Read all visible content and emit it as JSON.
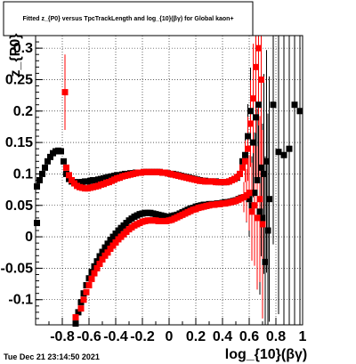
{
  "page": {
    "title": "Fitted  z_{P0}  versus TpcTrackLength and log_{10}(βγ) for Global kaon+",
    "timestamp": "Tue Dec 21 23:14:50 2021"
  },
  "chart_data": {
    "type": "scatter",
    "title": "Fitted  z_{P0}  versus TpcTrackLength and log_{10}(βγ) for Global kaon+",
    "xlabel": "log_{10}(βγ)",
    "ylabel": "z_{P0}",
    "xlim": [
      -1.0,
      1.0
    ],
    "ylim": [
      -0.14,
      0.32
    ],
    "xticks": [
      -0.8,
      -0.6,
      -0.4,
      -0.2,
      0,
      0.2,
      0.4,
      0.6,
      0.8,
      1
    ],
    "xtick_labels": [
      "-0.8",
      "-0.6",
      "-0.4",
      "-0.2",
      "0",
      "0.2",
      "0.4",
      "0.6",
      "0.8",
      "1"
    ],
    "yticks": [
      -0.1,
      -0.05,
      0,
      0.05,
      0.1,
      0.15,
      0.2,
      0.25,
      0.3
    ],
    "ytick_labels": [
      "-0.1",
      "-0.05",
      "0",
      "0.05",
      "0.1",
      "0.15",
      "0.2",
      "0.25",
      "0.3"
    ],
    "grid": true,
    "series": [
      {
        "color": "#000000",
        "x": [
          -0.99,
          -0.97,
          -0.95,
          -0.93,
          -0.91,
          -0.89,
          -0.87,
          -0.85,
          -0.83,
          -0.81,
          -0.79,
          -0.77,
          -0.75,
          -0.73,
          -0.71,
          -0.69,
          -0.67,
          -0.65,
          -0.63,
          -0.61,
          -0.59,
          -0.57,
          -0.55,
          -0.53,
          -0.51,
          -0.49,
          -0.47,
          -0.45,
          -0.43,
          -0.41,
          -0.39,
          -0.37,
          -0.35,
          -0.33,
          -0.31,
          -0.29,
          -0.27,
          -0.25,
          -0.23,
          -0.21,
          -0.19,
          -0.17,
          -0.15,
          -0.13,
          -0.11,
          -0.09,
          -0.07,
          -0.05,
          -0.03,
          -0.01,
          0.01,
          0.03,
          0.05,
          0.07,
          0.09,
          0.11,
          0.13,
          0.15,
          0.17,
          0.19,
          0.21,
          0.23,
          0.25,
          0.27,
          0.29,
          0.31,
          0.33,
          0.35,
          0.37,
          0.39,
          0.41,
          0.43,
          0.45,
          0.47,
          0.49,
          0.51,
          0.53,
          0.55,
          0.57,
          0.59,
          0.61,
          0.63,
          0.65,
          0.67,
          0.69,
          0.71,
          0.73,
          0.75,
          0.78,
          0.82,
          0.86,
          0.9,
          0.94,
          0.98
        ],
        "y": [
          0.08,
          0.09,
          0.1,
          0.11,
          0.12,
          0.127,
          0.133,
          0.136,
          0.137,
          0.136,
          0.12,
          0.1,
          0.092,
          0.088,
          0.087,
          0.086,
          0.087,
          0.087,
          0.088,
          0.088,
          0.089,
          0.09,
          0.09,
          0.091,
          0.092,
          0.093,
          0.094,
          0.095,
          0.096,
          0.097,
          0.098,
          0.098,
          0.099,
          0.1,
          0.1,
          0.101,
          0.101,
          0.102,
          0.102,
          0.102,
          0.103,
          0.103,
          0.103,
          0.103,
          0.103,
          0.103,
          0.103,
          0.102,
          0.102,
          0.101,
          0.1,
          0.1,
          0.099,
          0.098,
          0.097,
          0.096,
          0.095,
          0.094,
          0.093,
          0.092,
          0.091,
          0.09,
          0.089,
          0.089,
          0.088,
          0.088,
          0.088,
          0.088,
          0.087,
          0.087,
          0.087,
          0.087,
          0.088,
          0.09,
          0.092,
          0.094,
          0.1,
          0.12,
          0.13,
          0.16,
          0.2,
          0.15,
          0.19,
          0.21,
          0.11,
          0.1,
          0.12,
          0.06,
          0.21,
          0.135,
          0.13,
          0.14,
          0.21,
          0.2
        ]
      },
      {
        "color": "#000000",
        "x": [
          -0.99,
          -0.7,
          -0.68,
          -0.66,
          -0.64,
          -0.62,
          -0.6,
          -0.58,
          -0.56,
          -0.54,
          -0.52,
          -0.5,
          -0.48,
          -0.46,
          -0.44,
          -0.42,
          -0.4,
          -0.38,
          -0.36,
          -0.34,
          -0.32,
          -0.3,
          -0.28,
          -0.26,
          -0.24,
          -0.22,
          -0.2,
          -0.18,
          -0.16,
          -0.14,
          -0.12,
          -0.1,
          -0.08,
          -0.06,
          -0.04,
          -0.02,
          0.0,
          0.02,
          0.04,
          0.06,
          0.08,
          0.1,
          0.12,
          0.14,
          0.16,
          0.18,
          0.2,
          0.22,
          0.24,
          0.26,
          0.28,
          0.3,
          0.32,
          0.34,
          0.36,
          0.38,
          0.4,
          0.42,
          0.44,
          0.46,
          0.48,
          0.5,
          0.52,
          0.54,
          0.56,
          0.58,
          0.6,
          0.62,
          0.64,
          0.66,
          0.68,
          0.7,
          0.72,
          0.74
        ],
        "y": [
          0.022,
          -0.138,
          -0.12,
          -0.104,
          -0.09,
          -0.077,
          -0.066,
          -0.056,
          -0.047,
          -0.039,
          -0.031,
          -0.024,
          -0.017,
          -0.011,
          -0.005,
          0.0,
          0.005,
          0.01,
          0.014,
          0.018,
          0.022,
          0.026,
          0.029,
          0.032,
          0.034,
          0.036,
          0.037,
          0.038,
          0.038,
          0.038,
          0.037,
          0.036,
          0.035,
          0.034,
          0.033,
          0.032,
          0.032,
          0.033,
          0.034,
          0.035,
          0.037,
          0.039,
          0.041,
          0.043,
          0.045,
          0.046,
          0.048,
          0.049,
          0.05,
          0.051,
          0.051,
          0.052,
          0.052,
          0.052,
          0.053,
          0.053,
          0.054,
          0.055,
          0.055,
          0.056,
          0.057,
          0.058,
          0.06,
          0.062,
          0.063,
          0.065,
          0.06,
          0.05,
          0.07,
          0.09,
          0.04,
          0.03,
          -0.04,
          0.01
        ]
      },
      {
        "color": "#ff0000",
        "x": [
          -0.77,
          -0.75,
          -0.73,
          -0.71,
          -0.69,
          -0.67,
          -0.65,
          -0.63,
          -0.61,
          -0.59,
          -0.57,
          -0.55,
          -0.53,
          -0.51,
          -0.49,
          -0.47,
          -0.45,
          -0.43,
          -0.41,
          -0.39,
          -0.37,
          -0.35,
          -0.33,
          -0.31,
          -0.29,
          -0.27,
          -0.25,
          -0.23,
          -0.21,
          -0.19,
          -0.17,
          -0.15,
          -0.13,
          -0.11,
          -0.09,
          -0.07,
          -0.05,
          -0.03,
          -0.01,
          0.01,
          0.03,
          0.05,
          0.07,
          0.09,
          0.11,
          0.13,
          0.15,
          0.17,
          0.19,
          0.21,
          0.23,
          0.25,
          0.27,
          0.29,
          0.31,
          0.33,
          0.35,
          0.37,
          0.39,
          0.41,
          0.43,
          0.45,
          0.47,
          0.49,
          0.51,
          0.53,
          0.55,
          0.57,
          0.59,
          0.61,
          0.63,
          0.65,
          0.67,
          0.69
        ],
        "y": [
          0.11,
          0.098,
          0.09,
          0.085,
          0.081,
          0.079,
          0.078,
          0.077,
          0.077,
          0.078,
          0.079,
          0.08,
          0.081,
          0.083,
          0.084,
          0.086,
          0.087,
          0.089,
          0.091,
          0.093,
          0.094,
          0.096,
          0.097,
          0.098,
          0.099,
          0.1,
          0.101,
          0.102,
          0.102,
          0.103,
          0.103,
          0.103,
          0.103,
          0.103,
          0.103,
          0.103,
          0.102,
          0.102,
          0.101,
          0.1,
          0.099,
          0.098,
          0.097,
          0.096,
          0.095,
          0.094,
          0.093,
          0.092,
          0.091,
          0.09,
          0.089,
          0.089,
          0.088,
          0.088,
          0.088,
          0.088,
          0.087,
          0.087,
          0.087,
          0.087,
          0.087,
          0.088,
          0.09,
          0.092,
          0.095,
          0.1,
          0.11,
          0.12,
          0.14,
          0.18,
          0.22,
          0.27,
          0.3,
          0.25
        ]
      },
      {
        "color": "#ff0000",
        "x": [
          -0.7,
          -0.66,
          -0.64,
          -0.62,
          -0.6,
          -0.58,
          -0.56,
          -0.54,
          -0.52,
          -0.5,
          -0.48,
          -0.46,
          -0.44,
          -0.42,
          -0.4,
          -0.38,
          -0.36,
          -0.34,
          -0.32,
          -0.3,
          -0.28,
          -0.26,
          -0.24,
          -0.22,
          -0.2,
          -0.18,
          -0.16,
          -0.14,
          -0.12,
          -0.1,
          -0.08,
          -0.06,
          -0.04,
          -0.02,
          0.0,
          0.02,
          0.04,
          0.06,
          0.08,
          0.1,
          0.12,
          0.14,
          0.16,
          0.18,
          0.2,
          0.22,
          0.24,
          0.26,
          0.28,
          0.3,
          0.32,
          0.34,
          0.36,
          0.38,
          0.4,
          0.42,
          0.44,
          0.46,
          0.48,
          0.5,
          0.52,
          0.54,
          0.56,
          0.58,
          0.6,
          0.62,
          0.64,
          0.66,
          0.68,
          0.7
        ],
        "y": [
          -0.128,
          -0.114,
          -0.1,
          -0.088,
          -0.077,
          -0.067,
          -0.058,
          -0.05,
          -0.043,
          -0.036,
          -0.03,
          -0.025,
          -0.019,
          -0.014,
          -0.009,
          -0.004,
          0.0,
          0.004,
          0.008,
          0.012,
          0.015,
          0.018,
          0.02,
          0.022,
          0.024,
          0.025,
          0.026,
          0.026,
          0.026,
          0.026,
          0.025,
          0.025,
          0.025,
          0.025,
          0.026,
          0.027,
          0.029,
          0.031,
          0.033,
          0.035,
          0.037,
          0.039,
          0.041,
          0.043,
          0.044,
          0.046,
          0.047,
          0.048,
          0.049,
          0.05,
          0.051,
          0.051,
          0.052,
          0.052,
          0.053,
          0.053,
          0.054,
          0.055,
          0.056,
          0.057,
          0.059,
          0.061,
          0.063,
          0.066,
          0.07,
          0.04,
          0.05,
          0.03,
          0.06,
          0.02
        ]
      },
      {
        "color": "#ff0000",
        "x": [
          -0.78
        ],
        "y": [
          0.23
        ],
        "error": [
          0.06
        ]
      }
    ]
  }
}
